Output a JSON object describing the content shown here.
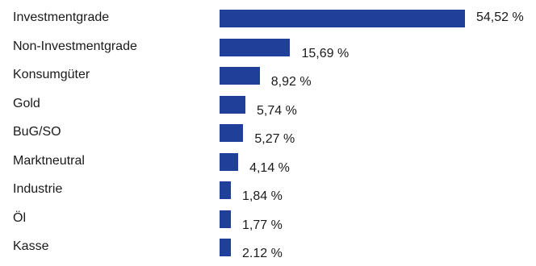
{
  "chart_data": {
    "type": "bar",
    "orientation": "horizontal",
    "categories": [
      "Investmentgrade",
      "Non-Investmentgrade",
      "Konsumgüter",
      "Gold",
      "BuG/SO",
      "Marktneutral",
      "Industrie",
      "Öl",
      "Kasse"
    ],
    "values": [
      54.52,
      15.69,
      8.92,
      5.74,
      5.27,
      4.14,
      1.84,
      1.77,
      2.12
    ],
    "value_labels": [
      "54,52 %",
      "15,69 %",
      "8,92 %",
      "5,74 %",
      "5,27 %",
      "4,14 %",
      "1,84 %",
      "1,77 %",
      "2.12 %"
    ],
    "bar_color": "#1f3f99",
    "grid": false,
    "legend": "none"
  }
}
